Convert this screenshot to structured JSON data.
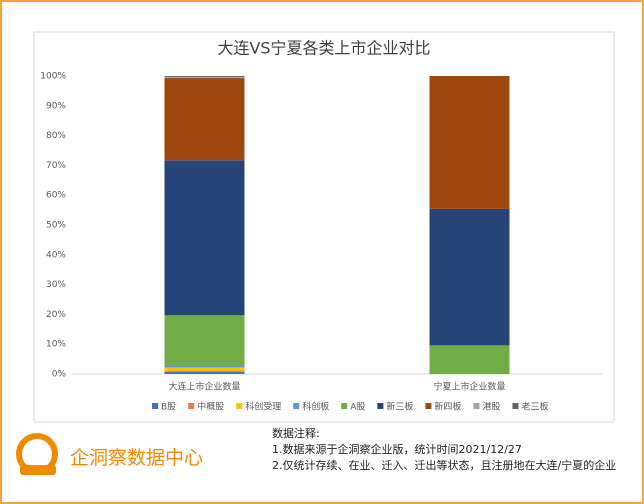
{
  "chart_data": {
    "type": "stacked_bar",
    "title": "大连VS宁夏各类上市企业对比",
    "categories": [
      "大连上市企业数量",
      "宁夏上市企业数量"
    ],
    "series": [
      {
        "name": "B股",
        "color": "#4472c4",
        "values": [
          0.7,
          0
        ]
      },
      {
        "name": "中概股",
        "color": "#ed7d31",
        "values": [
          0.3,
          0
        ]
      },
      {
        "name": "科创受理",
        "color": "#ffc000",
        "values": [
          1.2,
          0
        ]
      },
      {
        "name": "科创板",
        "color": "#5b9bd5",
        "values": [
          0.8,
          0
        ]
      },
      {
        "name": "A股",
        "color": "#70ad47",
        "values": [
          16.7,
          9.6
        ]
      },
      {
        "name": "新三板",
        "color": "#264478",
        "values": [
          52,
          45.8
        ]
      },
      {
        "name": "新四板",
        "color": "#9e480e",
        "values": [
          27.6,
          44.6
        ]
      },
      {
        "name": "港股",
        "color": "#a5a5a5",
        "values": [
          0.4,
          0
        ]
      },
      {
        "name": "老三板",
        "color": "#636363",
        "values": [
          0.3,
          0
        ]
      }
    ],
    "ylim": [
      0,
      100
    ],
    "yticks": [
      {
        "value": 0,
        "label": "0%"
      },
      {
        "value": 10,
        "label": "10%"
      },
      {
        "value": 20,
        "label": "20%"
      },
      {
        "value": 30,
        "label": "30%"
      },
      {
        "value": 40,
        "label": "40%"
      },
      {
        "value": 50,
        "label": "50%"
      },
      {
        "value": 60,
        "label": "60%"
      },
      {
        "value": 70,
        "label": "70%"
      },
      {
        "value": 80,
        "label": "80%"
      },
      {
        "value": 90,
        "label": "90%"
      },
      {
        "value": 100,
        "label": "100%"
      }
    ],
    "grid": false,
    "legend": "bottom"
  },
  "footer": {
    "brand": "企洞察数据中心",
    "notes_title": "数据注释:",
    "notes": [
      "1.数据来源于企洞察企业版，统计时间2021/12/27",
      "2.仅统计存续、在业、迁入、迁出等状态，且注册地在大连/宁夏的企业"
    ]
  }
}
